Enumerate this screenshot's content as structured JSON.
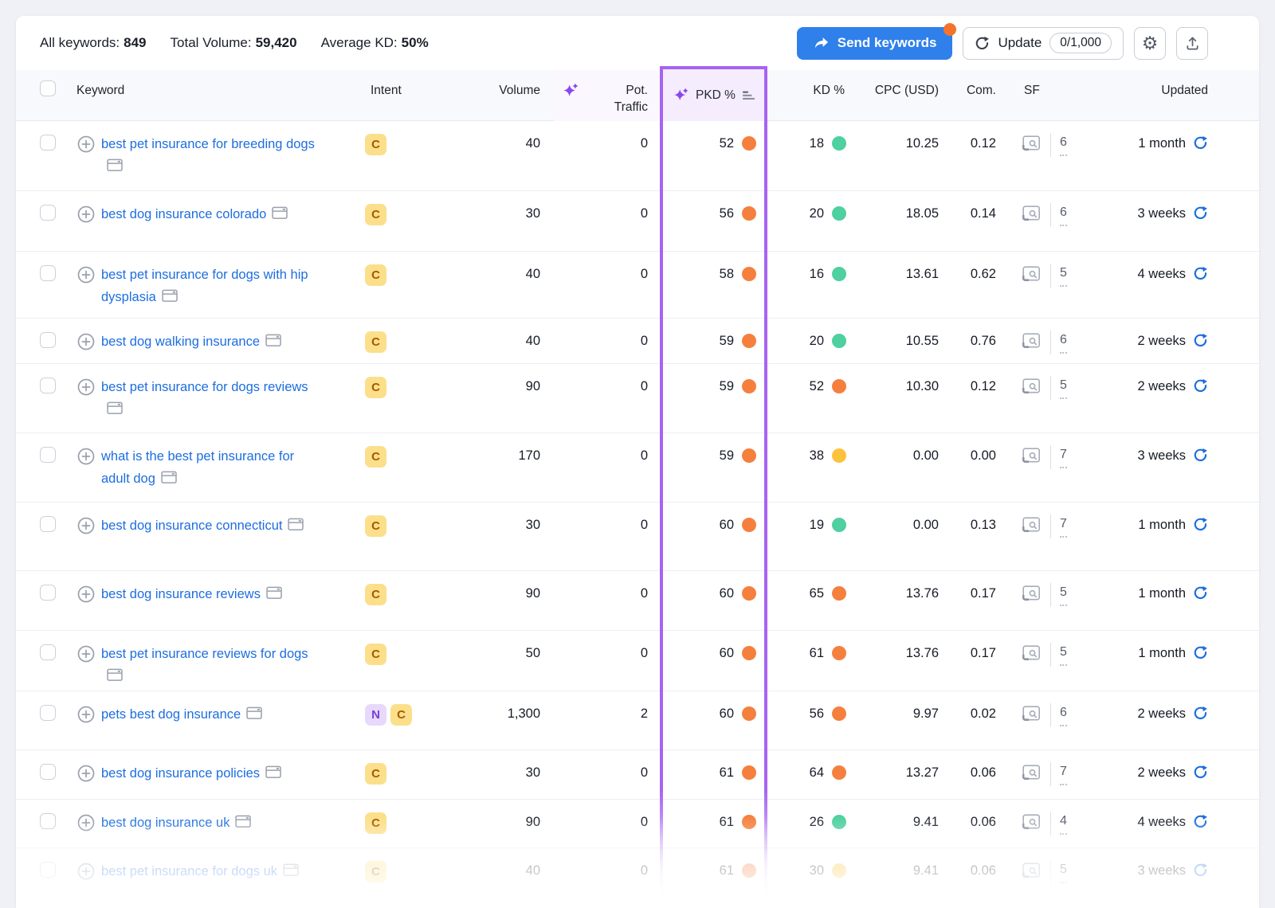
{
  "toolbar": {
    "stats": {
      "keywords_label": "All keywords:",
      "keywords_value": "849",
      "volume_label": "Total Volume:",
      "volume_value": "59,420",
      "kd_label": "Average KD:",
      "kd_value": "50%"
    },
    "send_keywords_label": "Send keywords",
    "update_label": "Update",
    "update_quota": "0/1,000"
  },
  "table": {
    "headers": {
      "keyword": "Keyword",
      "intent": "Intent",
      "volume": "Volume",
      "traffic": "Pot. Traffic",
      "pkd": "PKD %",
      "kd": "KD %",
      "cpc": "CPC (USD)",
      "com": "Com.",
      "sf": "SF",
      "updated": "Updated"
    },
    "rows": [
      {
        "keyword": "best pet insurance for breeding dogs",
        "intents": [
          "C"
        ],
        "volume": "40",
        "traffic": "0",
        "pkd": "52",
        "pkd_color": "orange",
        "kd": "18",
        "kd_color": "green",
        "cpc": "10.25",
        "com": "0.12",
        "sf": "6",
        "updated": "1 month"
      },
      {
        "keyword": "best dog insurance colorado",
        "intents": [
          "C"
        ],
        "volume": "30",
        "traffic": "0",
        "pkd": "56",
        "pkd_color": "orange",
        "kd": "20",
        "kd_color": "green",
        "cpc": "18.05",
        "com": "0.14",
        "sf": "6",
        "updated": "3 weeks"
      },
      {
        "keyword": "best pet insurance for dogs with hip dysplasia",
        "intents": [
          "C"
        ],
        "volume": "40",
        "traffic": "0",
        "pkd": "58",
        "pkd_color": "orange",
        "kd": "16",
        "kd_color": "green",
        "cpc": "13.61",
        "com": "0.62",
        "sf": "5",
        "updated": "4 weeks"
      },
      {
        "keyword": "best dog walking insurance",
        "intents": [
          "C"
        ],
        "volume": "40",
        "traffic": "0",
        "pkd": "59",
        "pkd_color": "orange",
        "kd": "20",
        "kd_color": "green",
        "cpc": "10.55",
        "com": "0.76",
        "sf": "6",
        "updated": "2 weeks"
      },
      {
        "keyword": "best pet insurance for dogs reviews",
        "intents": [
          "C"
        ],
        "volume": "90",
        "traffic": "0",
        "pkd": "59",
        "pkd_color": "orange",
        "kd": "52",
        "kd_color": "orange",
        "cpc": "10.30",
        "com": "0.12",
        "sf": "5",
        "updated": "2 weeks"
      },
      {
        "keyword": "what is the best pet insurance for adult dog",
        "intents": [
          "C"
        ],
        "volume": "170",
        "traffic": "0",
        "pkd": "59",
        "pkd_color": "orange",
        "kd": "38",
        "kd_color": "yellow",
        "cpc": "0.00",
        "com": "0.00",
        "sf": "7",
        "updated": "3 weeks"
      },
      {
        "keyword": "best dog insurance connecticut",
        "intents": [
          "C"
        ],
        "volume": "30",
        "traffic": "0",
        "pkd": "60",
        "pkd_color": "orange",
        "kd": "19",
        "kd_color": "green",
        "cpc": "0.00",
        "com": "0.13",
        "sf": "7",
        "updated": "1 month"
      },
      {
        "keyword": "best dog insurance reviews",
        "intents": [
          "C"
        ],
        "volume": "90",
        "traffic": "0",
        "pkd": "60",
        "pkd_color": "orange",
        "kd": "65",
        "kd_color": "orange",
        "cpc": "13.76",
        "com": "0.17",
        "sf": "5",
        "updated": "1 month"
      },
      {
        "keyword": "best pet insurance reviews for dogs",
        "intents": [
          "C"
        ],
        "volume": "50",
        "traffic": "0",
        "pkd": "60",
        "pkd_color": "orange",
        "kd": "61",
        "kd_color": "orange",
        "cpc": "13.76",
        "com": "0.17",
        "sf": "5",
        "updated": "1 month"
      },
      {
        "keyword": "pets best dog insurance",
        "intents": [
          "N",
          "C"
        ],
        "volume": "1,300",
        "traffic": "2",
        "pkd": "60",
        "pkd_color": "orange",
        "kd": "56",
        "kd_color": "orange",
        "cpc": "9.97",
        "com": "0.02",
        "sf": "6",
        "updated": "2 weeks"
      },
      {
        "keyword": "best dog insurance policies",
        "intents": [
          "C"
        ],
        "volume": "30",
        "traffic": "0",
        "pkd": "61",
        "pkd_color": "orange",
        "kd": "64",
        "kd_color": "orange",
        "cpc": "13.27",
        "com": "0.06",
        "sf": "7",
        "updated": "2 weeks"
      },
      {
        "keyword": "best dog insurance uk",
        "intents": [
          "C"
        ],
        "volume": "90",
        "traffic": "0",
        "pkd": "61",
        "pkd_color": "orange",
        "kd": "26",
        "kd_color": "green",
        "cpc": "9.41",
        "com": "0.06",
        "sf": "4",
        "updated": "4 weeks"
      },
      {
        "keyword": "best pet insurance for dogs uk",
        "intents": [
          "C"
        ],
        "volume": "40",
        "traffic": "0",
        "pkd": "61",
        "pkd_color": "orange",
        "kd": "30",
        "kd_color": "yellow",
        "cpc": "9.41",
        "com": "0.06",
        "sf": "5",
        "updated": "3 weeks"
      }
    ]
  },
  "colors": {
    "accent_blue": "#2f80ea",
    "link_blue": "#1d6ee0",
    "highlight_purple": "#a763f3",
    "highlight_purple_fill": "#f5ecfe",
    "sparkle_purple": "#8a46f0",
    "kd_green": "#4ed0a0",
    "kd_yellow": "#fdc23c",
    "kd_orange": "#f5803e",
    "intent_c_bg": "#fbdf8a",
    "intent_c_text": "#a55a00",
    "intent_n_bg": "#e7d9fb",
    "intent_n_text": "#7a3bd9",
    "notification_orange": "#f4732c"
  }
}
